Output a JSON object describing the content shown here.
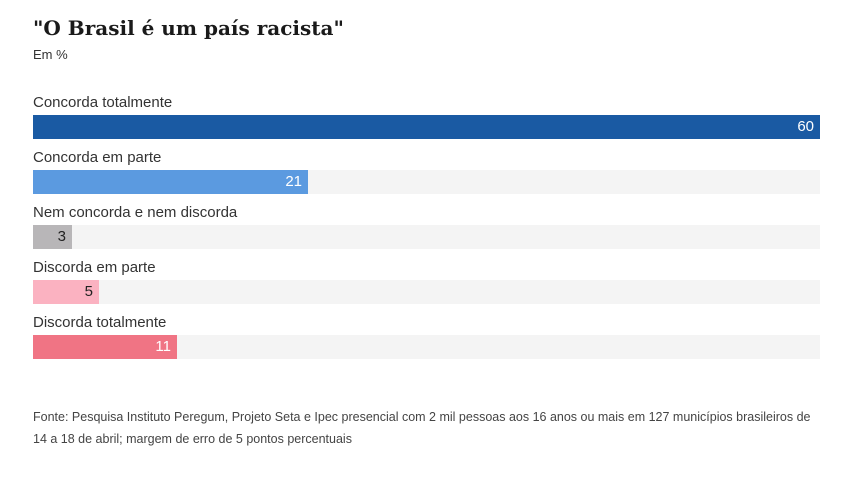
{
  "header": {
    "title": "\"O Brasil é um país racista\"",
    "subtitle": "Em %"
  },
  "chart_data": {
    "type": "bar",
    "orientation": "horizontal",
    "title": "\"O Brasil é um país racista\"",
    "subtitle": "Em %",
    "categories": [
      "Concorda totalmente",
      "Concorda em parte",
      "Nem concorda e nem discorda",
      "Discorda em parte",
      "Discorda totalmente"
    ],
    "values": [
      60,
      21,
      3,
      5,
      11
    ],
    "colors": [
      "#1a5aa3",
      "#5b9ae0",
      "#b8b6b8",
      "#fbb2c1",
      "#f07484"
    ],
    "value_label_colors": [
      "#ffffff",
      "#ffffff",
      "#222222",
      "#222222",
      "#ffffff"
    ],
    "xlim": [
      0,
      60
    ],
    "track_color": "#f4f4f4",
    "grid": false,
    "legend": "none"
  },
  "footer": {
    "source": "Fonte: Pesquisa Instituto Peregum, Projeto Seta e Ipec presencial com 2 mil pessoas aos 16 anos ou mais em 127 municípios brasileiros de 14 a 18 de abril; margem de erro de 5 pontos percentuais"
  }
}
